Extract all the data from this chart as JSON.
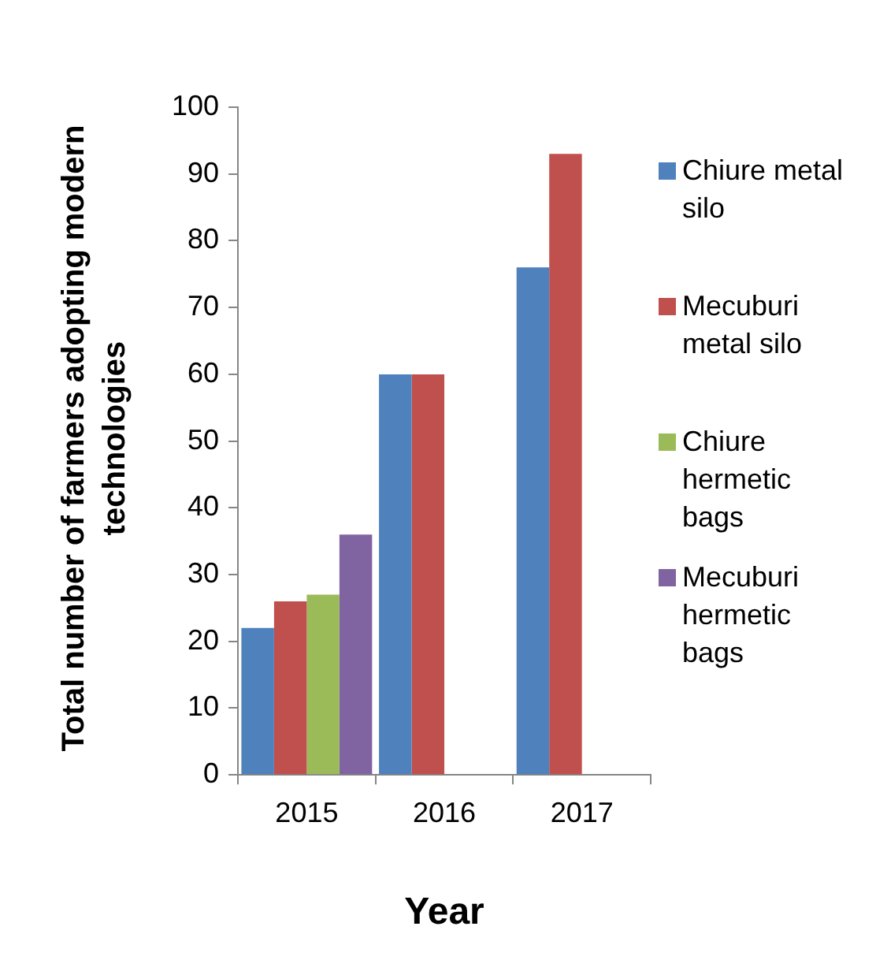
{
  "chart_data": {
    "type": "bar",
    "xlabel": "Year",
    "ylabel": "Total number of farmers adopting modern technologies",
    "categories": [
      "2015",
      "2016",
      "2017"
    ],
    "series": [
      {
        "name": "Chiure metal silo",
        "color": "#4f81bd",
        "values": [
          22,
          60,
          76
        ]
      },
      {
        "name": "Mecuburi metal silo",
        "color": "#c0504d",
        "values": [
          26,
          60,
          93
        ]
      },
      {
        "name": "Chiure hermetic bags",
        "color": "#9bbb59",
        "values": [
          27,
          null,
          null
        ]
      },
      {
        "name": "Mecuburi hermetic bags",
        "color": "#8064a2",
        "values": [
          36,
          null,
          null
        ]
      }
    ],
    "ylim": [
      0,
      100
    ],
    "yticks": [
      0,
      10,
      20,
      30,
      40,
      50,
      60,
      70,
      80,
      90,
      100
    ],
    "grid": false,
    "legend": "right"
  }
}
